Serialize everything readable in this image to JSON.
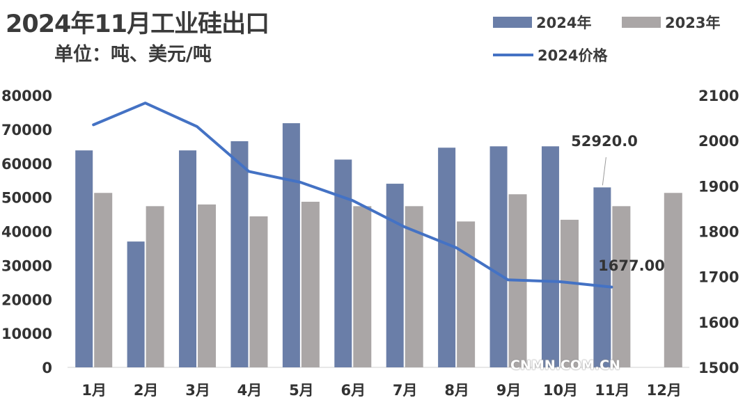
{
  "chart_data": {
    "type": "bar",
    "title": "2024年11月工业硅出口",
    "subtitle": "单位：吨、美元/吨",
    "categories": [
      "1月",
      "2月",
      "3月",
      "4月",
      "5月",
      "6月",
      "7月",
      "8月",
      "9月",
      "10月",
      "11月",
      "12月"
    ],
    "series": [
      {
        "name": "2024年",
        "type": "bar",
        "axis": "left",
        "color": "#6a7ea8",
        "values": [
          63800,
          37000,
          63800,
          66500,
          71800,
          61100,
          54000,
          64600,
          65000,
          65000,
          52920,
          null
        ]
      },
      {
        "name": "2023年",
        "type": "bar",
        "axis": "left",
        "color": "#aaa6a6",
        "values": [
          51300,
          47400,
          47900,
          44400,
          48700,
          47400,
          47400,
          42900,
          50900,
          43400,
          47400,
          51300
        ]
      },
      {
        "name": "2024价格",
        "type": "line",
        "axis": "right",
        "color": "#4472c4",
        "values": [
          2035,
          2083,
          2031,
          1932,
          1908,
          1868,
          1810,
          1764,
          1693,
          1689,
          1677,
          null
        ]
      }
    ],
    "left_axis": {
      "min": 0,
      "max": 80000,
      "step": 10000,
      "ticks": [
        "0",
        "10000",
        "20000",
        "30000",
        "40000",
        "50000",
        "60000",
        "70000",
        "80000"
      ]
    },
    "right_axis": {
      "min": 1500,
      "max": 2100,
      "step": 100,
      "ticks": [
        "1500",
        "1600",
        "1700",
        "1800",
        "1900",
        "2000",
        "2100"
      ]
    },
    "annotations": [
      {
        "series": "2024年",
        "category": "11月",
        "text": "52920.0"
      },
      {
        "series": "2024价格",
        "category": "11月",
        "text": "1677.00"
      }
    ],
    "legend_position": "top-right",
    "grid": false
  },
  "watermark": "CNMN.COM.CN"
}
